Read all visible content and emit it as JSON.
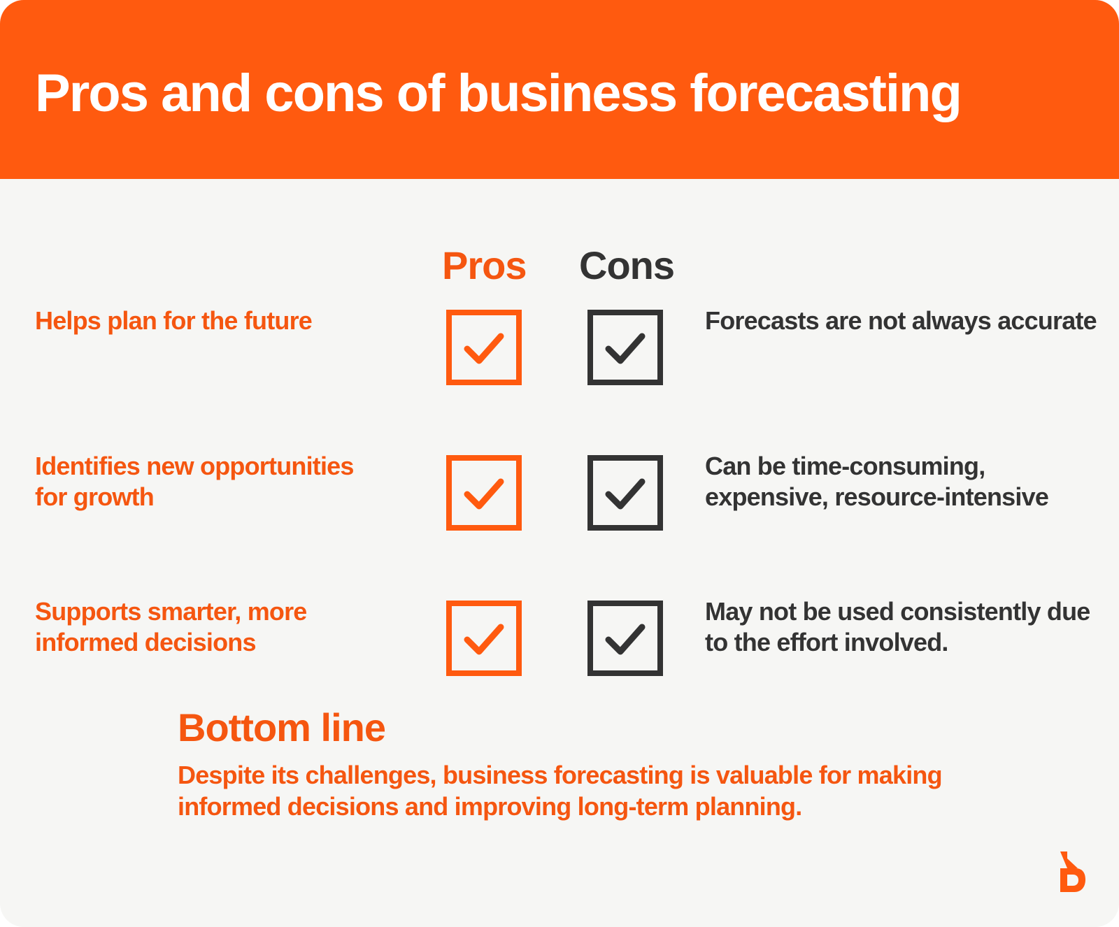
{
  "header": {
    "title": "Pros and cons of business forecasting"
  },
  "columns": {
    "pros": "Pros",
    "cons": "Cons"
  },
  "rows": [
    {
      "pro": "Helps plan for the future",
      "con": "Forecasts are not always accurate",
      "pro_checked": true,
      "con_checked": true
    },
    {
      "pro": "Identifies new opportunities for growth",
      "con": "Can be time-consuming, expensive,  resource-intensive",
      "pro_checked": true,
      "con_checked": true
    },
    {
      "pro": "Supports smarter, more informed decisions",
      "con": "May not be used consistently due to the effort involved.",
      "pro_checked": true,
      "con_checked": true
    }
  ],
  "bottom_line": {
    "title": "Bottom line",
    "text": "Despite its challenges, business forecasting is valuable for making informed decisions and improving long-term planning."
  },
  "icons": {
    "pro_check": "checkbox-checked-icon",
    "con_check": "checkbox-checked-icon",
    "logo": "brand-logo-icon"
  },
  "colors": {
    "accent": "#ff5a0f",
    "accent_text": "#f55610",
    "dark": "#333333",
    "background": "#f6f6f4"
  }
}
